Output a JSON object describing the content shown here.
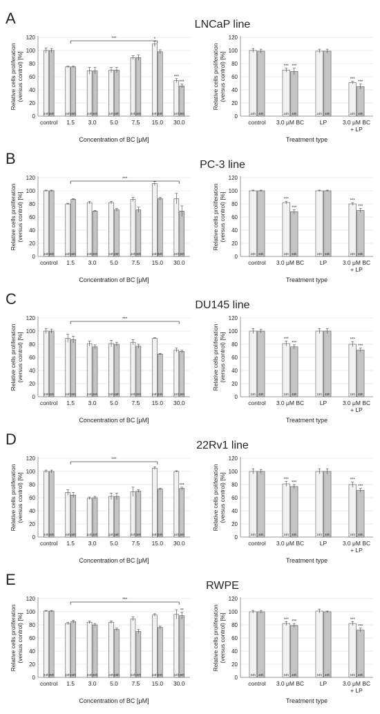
{
  "colors": {
    "bar_24h": "#f2f2f2",
    "bar_48h": "#c4c4c4",
    "axis": "#7f7f7f",
    "grid": "#d9d9d9"
  },
  "common": {
    "ylabel_line1": "Relative cells proliferation",
    "ylabel_line2": "(versus control) [%]",
    "yticks": [
      "0",
      "20",
      "40",
      "60",
      "80",
      "100",
      "120"
    ],
    "ylim": [
      0,
      120
    ],
    "time_labels": [
      "24h",
      "48h"
    ],
    "left_xlabel": "Concentration of BC [μM]",
    "right_xlabel": "Treatment type",
    "left_categories": [
      "control",
      "1.5",
      "3.0",
      "5.0",
      "7.5",
      "15.0",
      "30.0"
    ],
    "right_categories": [
      "control",
      "3.0 μM BC",
      "LP",
      "3.0 μM BC|+ LP"
    ]
  },
  "chart_data": [
    {
      "type": "bar",
      "panel_letter": "A",
      "title": "LNCaP line",
      "left": {
        "bracket_label": "***",
        "values_24h": [
          100,
          75,
          69,
          70,
          89,
          110,
          54
        ],
        "values_48h": [
          100,
          75,
          69,
          70,
          89,
          98,
          46
        ],
        "errors_24h": [
          4,
          1,
          5,
          4,
          3,
          4,
          3
        ],
        "errors_48h": [
          3,
          1,
          5,
          4,
          4,
          3,
          3
        ],
        "sig_24h": [
          "",
          "",
          "",
          "",
          "",
          "*",
          "***"
        ],
        "sig_48h": [
          "",
          "",
          "",
          "",
          "",
          "",
          "***"
        ]
      },
      "right": {
        "values_24h": [
          100,
          70,
          99,
          51
        ],
        "values_48h": [
          99,
          68,
          99,
          45
        ],
        "errors_24h": [
          3,
          3,
          3,
          2
        ],
        "errors_48h": [
          3,
          5,
          3,
          4
        ],
        "sig_24h": [
          "",
          "***",
          "",
          "***"
        ],
        "sig_48h": [
          "",
          "***",
          "",
          "***"
        ]
      }
    },
    {
      "type": "bar",
      "panel_letter": "B",
      "title": "PC-3 line",
      "left": {
        "bracket_label": "***",
        "values_24h": [
          100,
          80,
          82,
          82,
          87,
          111,
          88
        ],
        "values_48h": [
          100,
          87,
          69,
          71,
          71,
          88,
          69
        ],
        "errors_24h": [
          1,
          1,
          2,
          2,
          3,
          3,
          8
        ],
        "errors_48h": [
          1,
          1,
          1,
          2,
          4,
          2,
          8
        ],
        "sig_24h": [
          "",
          "",
          "",
          "",
          "",
          "",
          ""
        ],
        "sig_48h": [
          "",
          "",
          "",
          "",
          "",
          "",
          ""
        ]
      },
      "right": {
        "values_24h": [
          100,
          82,
          100,
          80
        ],
        "values_48h": [
          100,
          68,
          100,
          70
        ],
        "errors_24h": [
          1,
          2,
          1,
          2
        ],
        "errors_48h": [
          1,
          3,
          1,
          3
        ],
        "sig_24h": [
          "",
          "***",
          "",
          "***"
        ],
        "sig_48h": [
          "",
          "***",
          "",
          "***"
        ]
      }
    },
    {
      "type": "bar",
      "panel_letter": "C",
      "title": "DU145 line",
      "left": {
        "bracket_label": "***",
        "values_24h": [
          100,
          89,
          81,
          81,
          83,
          89,
          71
        ],
        "values_48h": [
          100,
          87,
          76,
          80,
          77,
          65,
          69
        ],
        "errors_24h": [
          4,
          6,
          4,
          5,
          4,
          1,
          3
        ],
        "errors_48h": [
          3,
          5,
          3,
          3,
          3,
          1,
          2
        ],
        "sig_24h": [
          "",
          "",
          "",
          "",
          "",
          "",
          ""
        ],
        "sig_48h": [
          "",
          "",
          "",
          "",
          "",
          "",
          ""
        ]
      },
      "right": {
        "values_24h": [
          100,
          81,
          100,
          80
        ],
        "values_48h": [
          100,
          76,
          100,
          71
        ],
        "errors_24h": [
          4,
          4,
          4,
          4
        ],
        "errors_48h": [
          3,
          3,
          4,
          3
        ],
        "sig_24h": [
          "",
          "***",
          "",
          "***"
        ],
        "sig_48h": [
          "",
          "***",
          "",
          "***"
        ]
      }
    },
    {
      "type": "bar",
      "panel_letter": "D",
      "title": "22Rv1 line",
      "left": {
        "bracket_label": "***",
        "values_24h": [
          100,
          68,
          59,
          62,
          69,
          105,
          100
        ],
        "values_48h": [
          100,
          64,
          60,
          62,
          70,
          73,
          74
        ],
        "errors_24h": [
          2,
          4,
          2,
          5,
          7,
          2,
          1
        ],
        "errors_48h": [
          2,
          4,
          2,
          5,
          2,
          1,
          2
        ],
        "sig_24h": [
          "",
          "",
          "",
          "",
          "",
          "",
          ""
        ],
        "sig_48h": [
          "",
          "",
          "",
          "",
          "",
          "",
          "***"
        ]
      },
      "right": {
        "values_24h": [
          100,
          81,
          100,
          80
        ],
        "values_48h": [
          100,
          77,
          100,
          71
        ],
        "errors_24h": [
          4,
          4,
          4,
          4
        ],
        "errors_48h": [
          3,
          3,
          4,
          3
        ],
        "sig_24h": [
          "",
          "***",
          "",
          "***"
        ],
        "sig_48h": [
          "",
          "***",
          "",
          "***"
        ]
      }
    },
    {
      "type": "bar",
      "panel_letter": "E",
      "title": "RWPE",
      "left": {
        "bracket_label": "***",
        "values_24h": [
          101,
          82,
          84,
          84,
          89,
          95,
          96
        ],
        "values_48h": [
          101,
          85,
          80,
          73,
          70,
          76,
          94
        ],
        "errors_24h": [
          1,
          2,
          2,
          2,
          3,
          2,
          7
        ],
        "errors_48h": [
          1,
          2,
          2,
          2,
          3,
          2,
          5
        ],
        "sig_24h": [
          "",
          "",
          "",
          "",
          "",
          "",
          ""
        ],
        "sig_48h": [
          "",
          "",
          "",
          "",
          "",
          "",
          "**"
        ]
      },
      "right": {
        "values_24h": [
          100,
          82,
          101,
          82
        ],
        "values_48h": [
          100,
          79,
          100,
          72
        ],
        "errors_24h": [
          2,
          3,
          3,
          3
        ],
        "errors_48h": [
          2,
          3,
          1,
          3
        ],
        "sig_24h": [
          "",
          "***",
          "",
          "***"
        ],
        "sig_48h": [
          "",
          "***",
          "",
          "***"
        ]
      }
    }
  ]
}
